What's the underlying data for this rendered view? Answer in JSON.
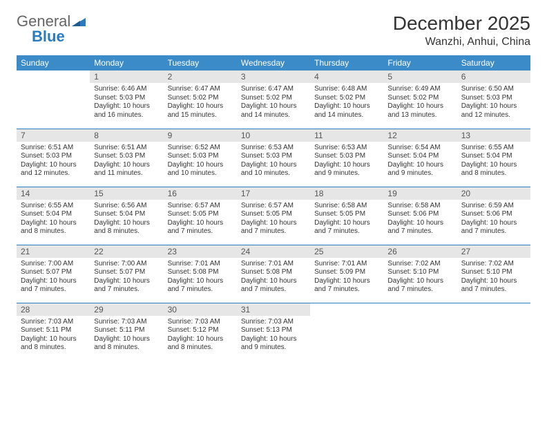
{
  "logo": {
    "text1": "General",
    "text2": "Blue"
  },
  "title": "December 2025",
  "location": "Wanzhi, Anhui, China",
  "colors": {
    "header_bg": "#3b8bc8",
    "header_text": "#ffffff",
    "daynum_bg": "#e6e6e6",
    "rule": "#2b7bbf",
    "logo_accent": "#2b7bbf",
    "body_text": "#333333"
  },
  "weekdays": [
    "Sunday",
    "Monday",
    "Tuesday",
    "Wednesday",
    "Thursday",
    "Friday",
    "Saturday"
  ],
  "start_weekday": 1,
  "days": [
    {
      "n": 1,
      "sunrise": "6:46 AM",
      "sunset": "5:03 PM",
      "daylight": "10 hours and 16 minutes."
    },
    {
      "n": 2,
      "sunrise": "6:47 AM",
      "sunset": "5:02 PM",
      "daylight": "10 hours and 15 minutes."
    },
    {
      "n": 3,
      "sunrise": "6:47 AM",
      "sunset": "5:02 PM",
      "daylight": "10 hours and 14 minutes."
    },
    {
      "n": 4,
      "sunrise": "6:48 AM",
      "sunset": "5:02 PM",
      "daylight": "10 hours and 14 minutes."
    },
    {
      "n": 5,
      "sunrise": "6:49 AM",
      "sunset": "5:02 PM",
      "daylight": "10 hours and 13 minutes."
    },
    {
      "n": 6,
      "sunrise": "6:50 AM",
      "sunset": "5:03 PM",
      "daylight": "10 hours and 12 minutes."
    },
    {
      "n": 7,
      "sunrise": "6:51 AM",
      "sunset": "5:03 PM",
      "daylight": "10 hours and 12 minutes."
    },
    {
      "n": 8,
      "sunrise": "6:51 AM",
      "sunset": "5:03 PM",
      "daylight": "10 hours and 11 minutes."
    },
    {
      "n": 9,
      "sunrise": "6:52 AM",
      "sunset": "5:03 PM",
      "daylight": "10 hours and 10 minutes."
    },
    {
      "n": 10,
      "sunrise": "6:53 AM",
      "sunset": "5:03 PM",
      "daylight": "10 hours and 10 minutes."
    },
    {
      "n": 11,
      "sunrise": "6:53 AM",
      "sunset": "5:03 PM",
      "daylight": "10 hours and 9 minutes."
    },
    {
      "n": 12,
      "sunrise": "6:54 AM",
      "sunset": "5:04 PM",
      "daylight": "10 hours and 9 minutes."
    },
    {
      "n": 13,
      "sunrise": "6:55 AM",
      "sunset": "5:04 PM",
      "daylight": "10 hours and 8 minutes."
    },
    {
      "n": 14,
      "sunrise": "6:55 AM",
      "sunset": "5:04 PM",
      "daylight": "10 hours and 8 minutes."
    },
    {
      "n": 15,
      "sunrise": "6:56 AM",
      "sunset": "5:04 PM",
      "daylight": "10 hours and 8 minutes."
    },
    {
      "n": 16,
      "sunrise": "6:57 AM",
      "sunset": "5:05 PM",
      "daylight": "10 hours and 7 minutes."
    },
    {
      "n": 17,
      "sunrise": "6:57 AM",
      "sunset": "5:05 PM",
      "daylight": "10 hours and 7 minutes."
    },
    {
      "n": 18,
      "sunrise": "6:58 AM",
      "sunset": "5:05 PM",
      "daylight": "10 hours and 7 minutes."
    },
    {
      "n": 19,
      "sunrise": "6:58 AM",
      "sunset": "5:06 PM",
      "daylight": "10 hours and 7 minutes."
    },
    {
      "n": 20,
      "sunrise": "6:59 AM",
      "sunset": "5:06 PM",
      "daylight": "10 hours and 7 minutes."
    },
    {
      "n": 21,
      "sunrise": "7:00 AM",
      "sunset": "5:07 PM",
      "daylight": "10 hours and 7 minutes."
    },
    {
      "n": 22,
      "sunrise": "7:00 AM",
      "sunset": "5:07 PM",
      "daylight": "10 hours and 7 minutes."
    },
    {
      "n": 23,
      "sunrise": "7:01 AM",
      "sunset": "5:08 PM",
      "daylight": "10 hours and 7 minutes."
    },
    {
      "n": 24,
      "sunrise": "7:01 AM",
      "sunset": "5:08 PM",
      "daylight": "10 hours and 7 minutes."
    },
    {
      "n": 25,
      "sunrise": "7:01 AM",
      "sunset": "5:09 PM",
      "daylight": "10 hours and 7 minutes."
    },
    {
      "n": 26,
      "sunrise": "7:02 AM",
      "sunset": "5:10 PM",
      "daylight": "10 hours and 7 minutes."
    },
    {
      "n": 27,
      "sunrise": "7:02 AM",
      "sunset": "5:10 PM",
      "daylight": "10 hours and 7 minutes."
    },
    {
      "n": 28,
      "sunrise": "7:03 AM",
      "sunset": "5:11 PM",
      "daylight": "10 hours and 8 minutes."
    },
    {
      "n": 29,
      "sunrise": "7:03 AM",
      "sunset": "5:11 PM",
      "daylight": "10 hours and 8 minutes."
    },
    {
      "n": 30,
      "sunrise": "7:03 AM",
      "sunset": "5:12 PM",
      "daylight": "10 hours and 8 minutes."
    },
    {
      "n": 31,
      "sunrise": "7:03 AM",
      "sunset": "5:13 PM",
      "daylight": "10 hours and 9 minutes."
    }
  ],
  "labels": {
    "sunrise": "Sunrise:",
    "sunset": "Sunset:",
    "daylight": "Daylight:"
  }
}
